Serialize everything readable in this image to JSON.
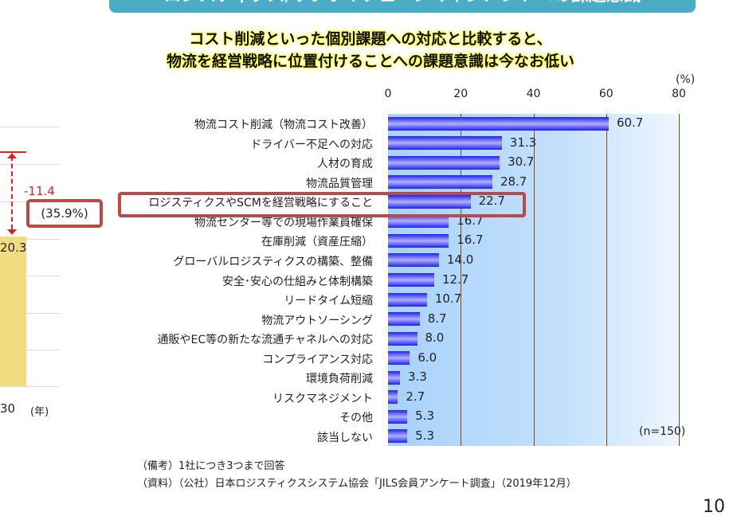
{
  "banner": "ロジスティクス/サプライチェーンマネジメントへの課題意識",
  "headline": [
    "コスト削減といった個別課題への対応と比較すると、",
    "物流を経営戦略に位置付けることへの課題意識は今なお低い"
  ],
  "left_chart": {
    "value": "20.3",
    "diff": "-11.4",
    "diff_pct": "(35.9%)",
    "x_tick": "30",
    "x_unit": "(年)"
  },
  "chart_data": {
    "type": "bar",
    "orientation": "horizontal",
    "unit": "(%)",
    "xlim": [
      0,
      80
    ],
    "ticks": [
      "0",
      "20",
      "40",
      "60",
      "80"
    ],
    "categories": [
      "物流コスト削減（物流コスト改善）",
      "ドライバー不足への対応",
      "人材の育成",
      "物流品質管理",
      "ロジスティクスやSCMを経営戦略にすること",
      "物流センター等での現場作業員確保",
      "在庫削減（資産圧縮）",
      "グローバルロジスティクスの構築、整備",
      "安全･安心の仕組みと体制構築",
      "リードタイム短縮",
      "物流アウトソーシング",
      "通販やEC等の新たな流通チャネルへの対応",
      "コンプライアンス対応",
      "環境負荷削減",
      "リスクマネジメント",
      "その他",
      "該当しない"
    ],
    "values": [
      60.7,
      31.3,
      30.7,
      28.7,
      22.7,
      16.7,
      16.7,
      14.0,
      12.7,
      10.7,
      8.7,
      8.0,
      6.0,
      3.3,
      2.7,
      5.3,
      5.3
    ],
    "highlighted": "ロジスティクスやSCMを経営戦略にすること",
    "note": "(n=150)"
  },
  "footnotes": [
    "（備考）1社につき3つまで回答",
    "（資料）（公社）日本ロジスティクスシステム協会「JILS会員アンケート調査」（2019年12月）"
  ],
  "page_number": "10",
  "colors": {
    "banner": "#4bacc6",
    "bar": "#2020ee",
    "highlight": "#b94a48",
    "left_bar": "#f2dc82",
    "diff": "#e02020"
  }
}
